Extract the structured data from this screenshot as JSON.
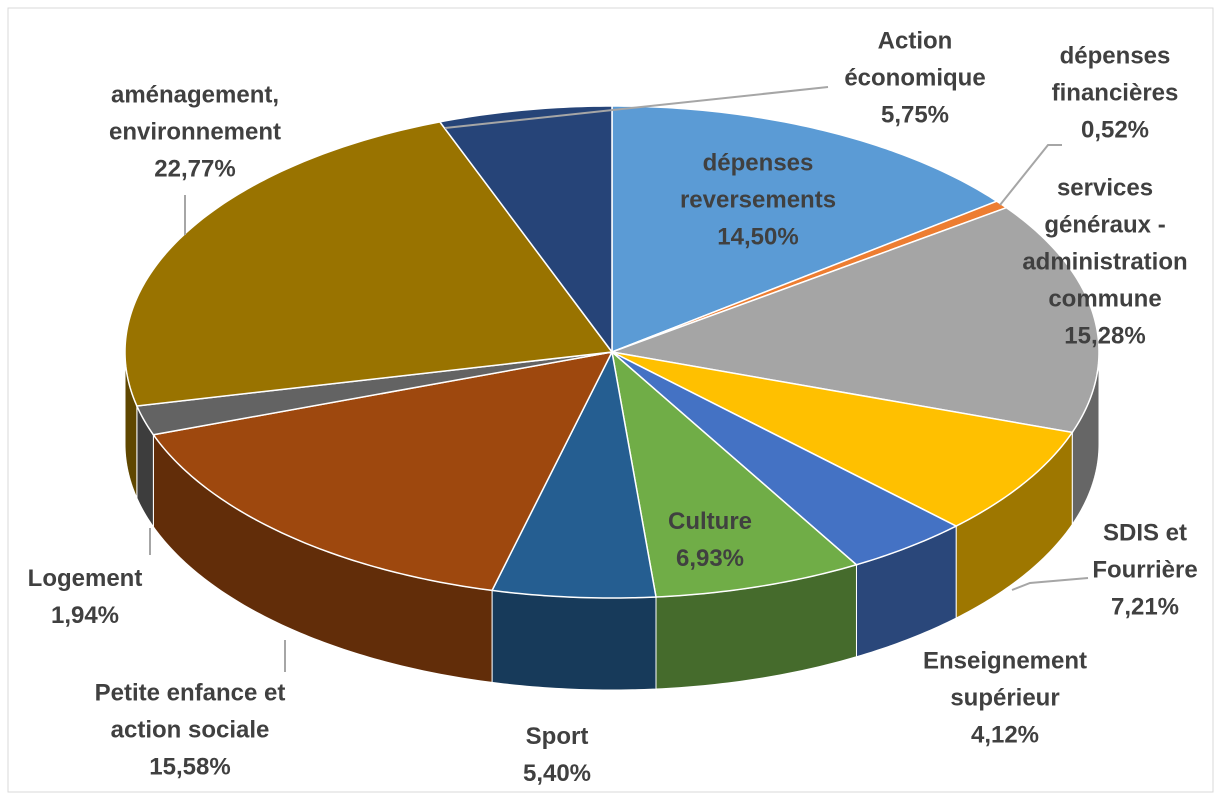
{
  "chart_data": {
    "type": "pie",
    "categories": [
      "dépenses reversements",
      "dépenses financières",
      "services généraux - administration commune",
      "SDIS et Fourrière",
      "Enseignement supérieur",
      "Culture",
      "Sport",
      "Petite enfance et action sociale",
      "Logement",
      "aménagement, environnement",
      "Action économique"
    ],
    "values": [
      14.5,
      0.52,
      15.28,
      7.21,
      4.12,
      6.93,
      5.4,
      15.58,
      1.94,
      22.77,
      5.75
    ],
    "value_labels": [
      "14,50%",
      "0,52%",
      "15,28%",
      "7,21%",
      "4,12%",
      "6,93%",
      "5,40%",
      "15,58%",
      "1,94%",
      "22,77%",
      "5,75%"
    ],
    "colors": [
      "#5b9bd5",
      "#ed7d31",
      "#a5a5a5",
      "#ffc000",
      "#4472c4",
      "#70ad47",
      "#255e91",
      "#9e480e",
      "#636363",
      "#997300",
      "#264478"
    ]
  }
}
